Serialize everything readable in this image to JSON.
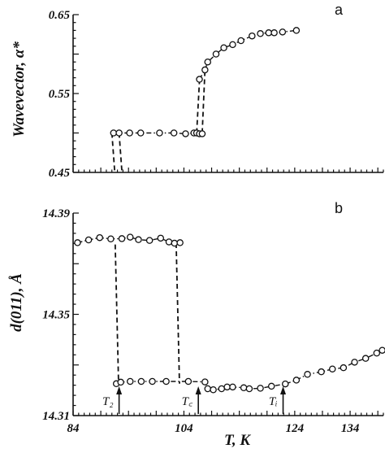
{
  "chart_data": [
    {
      "panel": "a",
      "type": "scatter",
      "xlabel": "",
      "ylabel": "Wavevector, α*",
      "xlim": [
        84,
        140
      ],
      "ylim": [
        0.45,
        0.65
      ],
      "yticks": [
        "0.45",
        "0.55",
        "0.65"
      ],
      "series": [
        {
          "points": [
            [
              91.3,
              0.5
            ],
            [
              92.3,
              0.5
            ],
            [
              94.2,
              0.5
            ],
            [
              96.2,
              0.5
            ],
            [
              99.6,
              0.5
            ],
            [
              102.2,
              0.5
            ],
            [
              104.3,
              0.499
            ],
            [
              105.8,
              0.5
            ],
            [
              106.3,
              0.5
            ],
            [
              106.8,
              0.499
            ],
            [
              107.3,
              0.499
            ],
            [
              106.8,
              0.568
            ],
            [
              107.8,
              0.58
            ],
            [
              108.3,
              0.59
            ],
            [
              109.8,
              0.6
            ],
            [
              111.2,
              0.608
            ],
            [
              112.8,
              0.612
            ],
            [
              114.3,
              0.617
            ],
            [
              116.3,
              0.623
            ],
            [
              117.8,
              0.626
            ],
            [
              119.3,
              0.627
            ],
            [
              120.3,
              0.627
            ],
            [
              121.8,
              0.628
            ],
            [
              124.3,
              0.63
            ]
          ]
        }
      ],
      "transitions": [
        {
          "x": [
            91.0,
            91.5
          ],
          "y": [
            0.5,
            0.452
          ]
        },
        {
          "x": [
            92.3,
            92.8
          ],
          "y": [
            0.5,
            0.452
          ]
        },
        {
          "x": [
            106.3,
            106.8
          ],
          "y": [
            0.5,
            0.565
          ]
        },
        {
          "x": [
            107.3,
            107.8
          ],
          "y": [
            0.5,
            0.58
          ]
        }
      ]
    },
    {
      "panel": "b",
      "type": "scatter",
      "xlabel": "T, K",
      "ylabel": "d(011), Å",
      "xlim": [
        84,
        140
      ],
      "ylim": [
        14.31,
        14.39
      ],
      "xticks": [
        "84",
        "104",
        "124",
        "134"
      ],
      "xtick_values": [
        84,
        104,
        124,
        134
      ],
      "yticks": [
        "14.31",
        "14.35",
        "14.39"
      ],
      "series": [
        {
          "points": [
            [
              84.8,
              14.3783
            ],
            [
              86.8,
              14.3794
            ],
            [
              88.8,
              14.3803
            ],
            [
              90.8,
              14.3798
            ],
            [
              92.8,
              14.3799
            ],
            [
              94.3,
              14.3805
            ],
            [
              95.8,
              14.3795
            ],
            [
              97.8,
              14.3792
            ],
            [
              99.8,
              14.3801
            ],
            [
              101.3,
              14.3786
            ],
            [
              102.3,
              14.3781
            ],
            [
              103.3,
              14.3783
            ],
            [
              91.8,
              14.3226
            ],
            [
              92.6,
              14.3232
            ],
            [
              94.3,
              14.3235
            ],
            [
              96.3,
              14.3235
            ],
            [
              98.3,
              14.3235
            ],
            [
              100.8,
              14.3235
            ],
            [
              104.8,
              14.3235
            ],
            [
              107.8,
              14.3233
            ],
            [
              108.3,
              14.3206
            ],
            [
              109.3,
              14.3202
            ],
            [
              110.8,
              14.3206
            ],
            [
              111.8,
              14.3213
            ],
            [
              112.8,
              14.3213
            ],
            [
              114.8,
              14.321
            ],
            [
              115.8,
              14.3206
            ],
            [
              117.8,
              14.3208
            ],
            [
              119.8,
              14.3216
            ],
            [
              122.3,
              14.3225
            ],
            [
              124.3,
              14.324
            ],
            [
              126.3,
              14.3263
            ],
            [
              128.8,
              14.3273
            ],
            [
              130.8,
              14.3284
            ],
            [
              132.8,
              14.3289
            ],
            [
              134.8,
              14.3311
            ],
            [
              136.8,
              14.3326
            ],
            [
              138.8,
              14.3347
            ],
            [
              139.8,
              14.3358
            ]
          ]
        }
      ],
      "transitions": [
        {
          "x": [
            91.6,
            92.2
          ],
          "y": [
            14.3776,
            14.3233
          ]
        },
        {
          "x": [
            102.6,
            103.2
          ],
          "y": [
            14.3781,
            14.3226
          ]
        }
      ],
      "annotations": [
        {
          "text": "T₂",
          "x": 92.3,
          "name": "t2-arrow"
        },
        {
          "text": "T꜀",
          "x": 106.6,
          "name": "tc-arrow"
        },
        {
          "text": "Tᵢ",
          "x": 121.9,
          "name": "ti-arrow"
        }
      ]
    }
  ]
}
